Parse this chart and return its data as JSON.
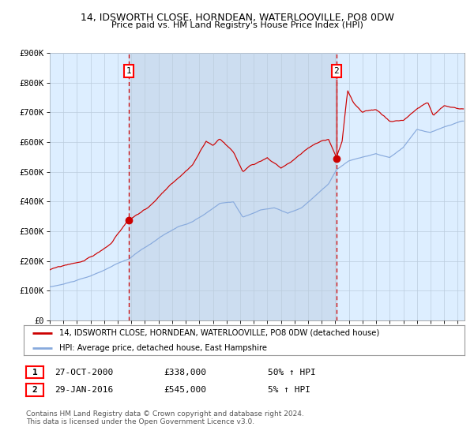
{
  "title_line1": "14, IDSWORTH CLOSE, HORNDEAN, WATERLOOVILLE, PO8 0DW",
  "title_line2": "Price paid vs. HM Land Registry's House Price Index (HPI)",
  "xlim_start": 1995.0,
  "xlim_end": 2025.5,
  "ylim_min": 0,
  "ylim_max": 900000,
  "yticks": [
    0,
    100000,
    200000,
    300000,
    400000,
    500000,
    600000,
    700000,
    800000,
    900000
  ],
  "ytick_labels": [
    "£0",
    "£100K",
    "£200K",
    "£300K",
    "£400K",
    "£500K",
    "£600K",
    "£700K",
    "£800K",
    "£900K"
  ],
  "sale1_x": 2000.82,
  "sale1_y": 338000,
  "sale1_label": "1",
  "sale2_x": 2016.08,
  "sale2_y": 545000,
  "sale2_label": "2",
  "legend_entry1": "14, IDSWORTH CLOSE, HORNDEAN, WATERLOOVILLE, PO8 0DW (detached house)",
  "legend_entry2": "HPI: Average price, detached house, East Hampshire",
  "table_row1": [
    "1",
    "27-OCT-2000",
    "£338,000",
    "50% ↑ HPI"
  ],
  "table_row2": [
    "2",
    "29-JAN-2016",
    "£545,000",
    "5% ↑ HPI"
  ],
  "footnote": "Contains HM Land Registry data © Crown copyright and database right 2024.\nThis data is licensed under the Open Government Licence v3.0.",
  "plot_bg_color": "#ddeeff",
  "grid_color": "#bbccdd",
  "hpi_line_color": "#88aadd",
  "price_line_color": "#cc0000",
  "dashed_line_color": "#cc0000",
  "marker_color": "#cc0000",
  "shade_color": "#ccddf0"
}
